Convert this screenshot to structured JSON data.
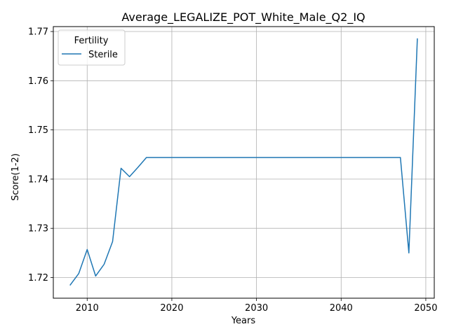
{
  "chart_data": {
    "type": "line",
    "title": "Average_LEGALIZE_POT_White_Male_Q2_IQ",
    "xlabel": "Years",
    "ylabel": "Score(1-2)",
    "xlim": [
      2006,
      2051
    ],
    "ylim": [
      1.7158,
      1.771
    ],
    "xticks": [
      2010,
      2020,
      2030,
      2040,
      2050
    ],
    "yticks": [
      1.72,
      1.73,
      1.74,
      1.75,
      1.76,
      1.77
    ],
    "xtick_labels": [
      "2010",
      "2020",
      "2030",
      "2040",
      "2050"
    ],
    "ytick_labels": [
      "1.72",
      "1.73",
      "1.74",
      "1.75",
      "1.76",
      "1.77"
    ],
    "grid": true,
    "legend": {
      "title": "Fertility",
      "placement": "upper-left"
    },
    "series": [
      {
        "name": "Sterile",
        "color": "#1f77b4",
        "x": [
          2008,
          2009,
          2010,
          2011,
          2012,
          2013,
          2014,
          2015,
          2016,
          2017,
          2018,
          2019,
          2020,
          2021,
          2022,
          2023,
          2024,
          2025,
          2026,
          2027,
          2028,
          2029,
          2030,
          2031,
          2032,
          2033,
          2034,
          2035,
          2036,
          2037,
          2038,
          2039,
          2040,
          2041,
          2042,
          2043,
          2044,
          2045,
          2046,
          2047,
          2048,
          2049
        ],
        "y": [
          1.7185,
          1.7208,
          1.7257,
          1.7203,
          1.7227,
          1.7273,
          1.7422,
          1.7405,
          1.7424,
          1.7444,
          1.7444,
          1.7444,
          1.7444,
          1.7444,
          1.7444,
          1.7444,
          1.7444,
          1.7444,
          1.7444,
          1.7444,
          1.7444,
          1.7444,
          1.7444,
          1.7444,
          1.7444,
          1.7444,
          1.7444,
          1.7444,
          1.7444,
          1.7444,
          1.7444,
          1.7444,
          1.7444,
          1.7444,
          1.7444,
          1.7444,
          1.7444,
          1.7444,
          1.7444,
          1.7444,
          1.725,
          1.7685
        ]
      }
    ]
  }
}
